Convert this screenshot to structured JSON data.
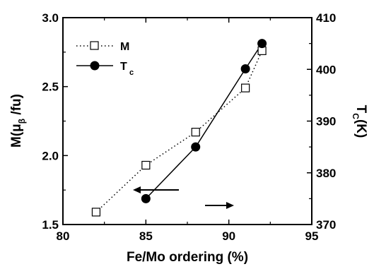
{
  "chart_data": {
    "type": "line",
    "xlabel": "Fe/Mo ordering (%)",
    "ylabel_left": {
      "main": "M(μ",
      "sub": "β",
      "tail": " /fu)"
    },
    "ylabel_right": {
      "main": "T",
      "sub": "C",
      "tail": "(K)"
    },
    "xlim": [
      80,
      95
    ],
    "ylim_left": [
      1.5,
      3.0
    ],
    "ylim_right": [
      370,
      410
    ],
    "x_ticks": [
      "80",
      "85",
      "90",
      "95"
    ],
    "y_left_ticks": [
      "1.5",
      "2.0",
      "2.5",
      "3.0"
    ],
    "y_right_ticks": [
      "370",
      "380",
      "390",
      "400",
      "410"
    ],
    "legend_position": "top-left",
    "series": [
      {
        "name": "M",
        "axis": "left",
        "marker": "open-square",
        "line_style": "dotted",
        "x": [
          82,
          85,
          88,
          91,
          92
        ],
        "y": [
          1.59,
          1.93,
          2.17,
          2.49,
          2.76
        ]
      },
      {
        "name": "T",
        "name_sub": "c",
        "axis": "right",
        "marker": "filled-circle",
        "line_style": "solid",
        "x": [
          85,
          88,
          91,
          92
        ],
        "y": [
          375,
          385,
          400.1,
          405
        ]
      }
    ],
    "annotations": [
      {
        "type": "arrow",
        "direction": "left",
        "points_to_axis": "left"
      },
      {
        "type": "arrow",
        "direction": "right",
        "points_to_axis": "right"
      }
    ]
  }
}
